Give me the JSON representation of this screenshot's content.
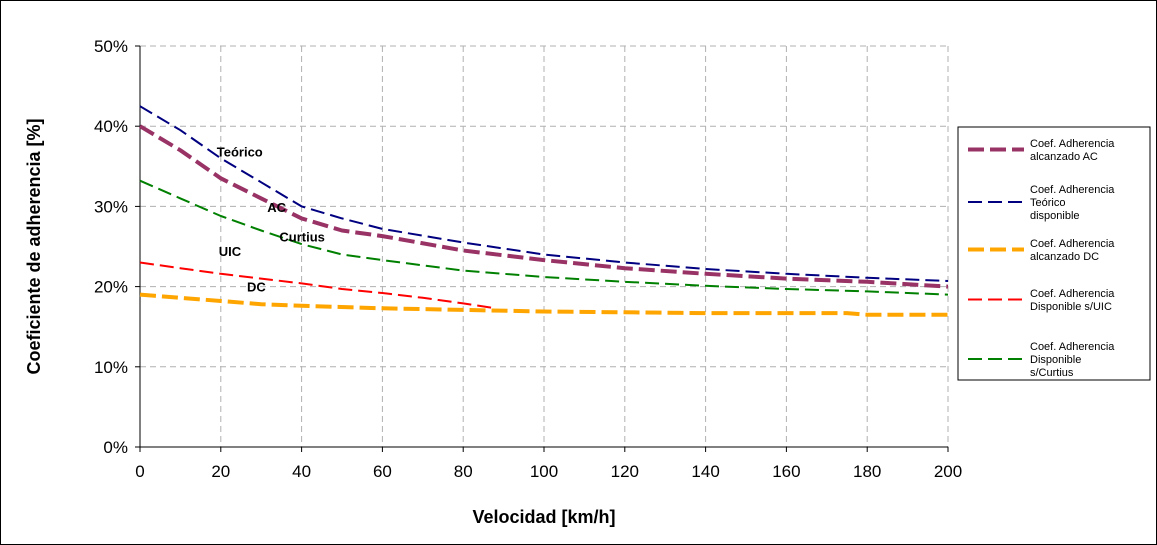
{
  "chart_data": {
    "type": "line",
    "xlabel": "Velocidad [km/h]",
    "ylabel": "Coeficiente de adherencia [%]",
    "xlim": [
      0,
      200
    ],
    "ylim": [
      0,
      50
    ],
    "xticks": [
      "0",
      "20",
      "40",
      "60",
      "80",
      "100",
      "120",
      "140",
      "160",
      "180",
      "200"
    ],
    "yticks": [
      "0%",
      "10%",
      "20%",
      "30%",
      "40%",
      "50%"
    ],
    "grid": true,
    "legend_position": "right",
    "series": [
      {
        "name": "Coef. Adherencia alcanzado AC",
        "legend_lines": [
          "Coef. Adherencia",
          "alcanzado AC"
        ],
        "color": "#993366",
        "stroke": "thick-dash",
        "x": [
          0,
          10,
          20,
          30,
          40,
          50,
          60,
          80,
          100,
          120,
          140,
          160,
          180,
          200
        ],
        "y": [
          40,
          37,
          33.5,
          31,
          28.5,
          27,
          26.3,
          24.5,
          23.3,
          22.3,
          21.6,
          21,
          20.6,
          20
        ]
      },
      {
        "name": "Coef. Adherencia Teórico disponible",
        "legend_lines": [
          "Coef. Adherencia",
          "Teórico",
          "disponible"
        ],
        "color": "#000080",
        "stroke": "thin-dash",
        "x": [
          0,
          10,
          20,
          30,
          40,
          50,
          60,
          80,
          100,
          120,
          140,
          160,
          180,
          200
        ],
        "y": [
          42.5,
          39.5,
          36,
          33,
          30,
          28.5,
          27.2,
          25.5,
          24,
          23,
          22.2,
          21.6,
          21.1,
          20.7
        ]
      },
      {
        "name": "Coef. Adherencia alcanzado DC",
        "legend_lines": [
          "Coef. Adherencia",
          "alcanzado DC"
        ],
        "color": "#FFA500",
        "stroke": "thick-dash",
        "x": [
          0,
          10,
          20,
          30,
          40,
          60,
          80,
          100,
          120,
          140,
          160,
          175,
          180,
          200
        ],
        "y": [
          19,
          18.6,
          18.2,
          17.8,
          17.6,
          17.3,
          17.1,
          16.9,
          16.8,
          16.7,
          16.7,
          16.7,
          16.5,
          16.5
        ]
      },
      {
        "name": "Coef. Adherencia Disponible s/UIC",
        "legend_lines": [
          "Coef. Adherencia",
          "Disponible s/UIC"
        ],
        "color": "#FF0000",
        "stroke": "thin-dash",
        "x": [
          0,
          10,
          20,
          30,
          40,
          50,
          60,
          70,
          80,
          88
        ],
        "y": [
          23,
          22.3,
          21.6,
          21,
          20.4,
          19.7,
          19.2,
          18.6,
          17.9,
          17.3
        ]
      },
      {
        "name": "Coef. Adherencia Disponible s/Curtius",
        "legend_lines": [
          "Coef. Adherencia",
          "Disponible",
          "s/Curtius"
        ],
        "color": "#008000",
        "stroke": "thin-dash",
        "x": [
          0,
          10,
          20,
          30,
          40,
          50,
          60,
          80,
          100,
          120,
          140,
          160,
          180,
          200
        ],
        "y": [
          33.2,
          31,
          28.8,
          27,
          25.3,
          24,
          23.3,
          22,
          21.2,
          20.6,
          20.1,
          19.7,
          19.4,
          19
        ]
      }
    ],
    "annotations": [
      {
        "text": "Teórico",
        "x": 19,
        "y": 36.2
      },
      {
        "text": "AC",
        "x": 31.5,
        "y": 29.3
      },
      {
        "text": "Curtius",
        "x": 34.5,
        "y": 25.6
      },
      {
        "text": "UIC",
        "x": 19.5,
        "y": 23.8
      },
      {
        "text": "DC",
        "x": 26.5,
        "y": 19.4
      }
    ]
  }
}
